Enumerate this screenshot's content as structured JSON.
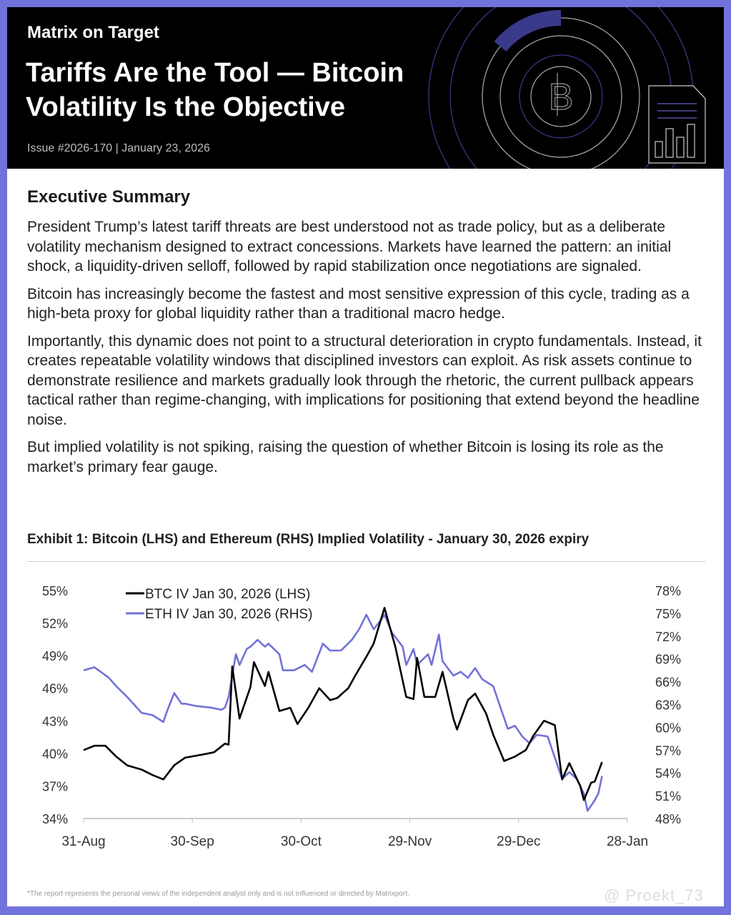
{
  "header": {
    "brand": "Matrix on Target",
    "title_line1": "Tariffs Are the Tool — Bitcoin",
    "title_line2": "Volatility Is the Objective",
    "issue": "Issue #2026-170 | January 23, 2026"
  },
  "summary": {
    "heading": "Executive Summary",
    "paragraphs": [
      "President Trump’s latest tariff threats are best understood not as trade policy, but as a deliberate volatility mechanism designed to extract concessions. Markets have learned the pattern: an initial shock, a liquidity-driven selloff, followed by rapid stabilization once negotiations are signaled.",
      "Bitcoin has increasingly become the fastest and most sensitive expression of this cycle, trading as a high-beta proxy for global liquidity rather than a traditional macro hedge.",
      "Importantly, this dynamic does not point to a structural deterioration in crypto fundamentals. Instead, it creates repeatable volatility windows that disciplined investors can exploit. As risk assets continue to demonstrate resilience and markets gradually look through the rhetoric, the current pullback appears tactical rather than regime-changing, with implications for positioning that extend beyond the headline noise.",
      "But implied volatility is not spiking, raising the question of whether Bitcoin is losing its role as the market’s primary fear gauge."
    ]
  },
  "chart_data": {
    "type": "line",
    "title": "Exhibit 1: Bitcoin (LHS) and Ethereum (RHS) Implied Volatility - January 30, 2026 expiry",
    "x_unit": "days since 31-Aug-2025",
    "x_ticks": [
      {
        "day": 0,
        "label": "31-Aug"
      },
      {
        "day": 30,
        "label": "30-Sep"
      },
      {
        "day": 60,
        "label": "30-Oct"
      },
      {
        "day": 90,
        "label": "29-Nov"
      },
      {
        "day": 120,
        "label": "29-Dec"
      },
      {
        "day": 150,
        "label": "28-Jan"
      }
    ],
    "xlim": [
      0,
      150
    ],
    "y_left": {
      "ylim": [
        34,
        55
      ],
      "ticks": [
        "55%",
        "52%",
        "49%",
        "46%",
        "43%",
        "40%",
        "37%",
        "34%"
      ],
      "tick_values": [
        55,
        52,
        49,
        46,
        43,
        40,
        37,
        34
      ]
    },
    "y_right": {
      "ylim": [
        48,
        78
      ],
      "ticks": [
        "78%",
        "75%",
        "72%",
        "69%",
        "66%",
        "63%",
        "60%",
        "57%",
        "54%",
        "51%",
        "48%"
      ],
      "tick_values": [
        78,
        75,
        72,
        69,
        66,
        63,
        60,
        57,
        54,
        51,
        48
      ]
    },
    "legend_position": "top-left",
    "grid": false,
    "series": [
      {
        "name": "BTC IV Jan 30, 2026 (LHS)",
        "axis": "left",
        "color": "#000000",
        "x": [
          0,
          3,
          6,
          9,
          12,
          16,
          19,
          22,
          25,
          28,
          33,
          36,
          39,
          40,
          41,
          43,
          46,
          47,
          50,
          51,
          54,
          57,
          59,
          62,
          65,
          68,
          70,
          73,
          75,
          78,
          80,
          83,
          86,
          89,
          91,
          92,
          94,
          97,
          99,
          102,
          103,
          106,
          108,
          111,
          113,
          116,
          119,
          122,
          124,
          127,
          130,
          132,
          134,
          137,
          138,
          140,
          141,
          143
        ],
        "y": [
          40.3,
          40.7,
          40.7,
          39.7,
          38.9,
          38.5,
          38.0,
          37.6,
          38.9,
          39.6,
          39.9,
          40.1,
          40.9,
          40.8,
          48.0,
          43.2,
          46.1,
          48.4,
          46.2,
          47.5,
          43.9,
          44.2,
          42.7,
          44.2,
          46.0,
          44.9,
          45.1,
          46.0,
          47.2,
          48.9,
          50.1,
          53.4,
          49.8,
          45.2,
          45.0,
          48.8,
          45.2,
          45.2,
          47.5,
          43.2,
          42.2,
          44.9,
          45.5,
          43.7,
          41.7,
          39.3,
          39.7,
          40.3,
          41.6,
          43.0,
          42.6,
          37.6,
          39.1,
          37.0,
          35.7,
          37.3,
          37.4,
          39.2
        ]
      },
      {
        "name": "ETH IV Jan 30, 2026 (RHS)",
        "axis": "right",
        "color": "#7272d8",
        "x": [
          0,
          3,
          7,
          9,
          12,
          16,
          19,
          22,
          23,
          25,
          27,
          28,
          31,
          35,
          38,
          39,
          40,
          42,
          43,
          45,
          46,
          48,
          50,
          51,
          54,
          55,
          58,
          61,
          63,
          66,
          68,
          71,
          74,
          76,
          78,
          80,
          82,
          83,
          85,
          88,
          89,
          91,
          92,
          95,
          96,
          98,
          99,
          102,
          104,
          106,
          108,
          110,
          113,
          115,
          117,
          119,
          121,
          123,
          125,
          128,
          130,
          132,
          134,
          136,
          138,
          139,
          141,
          142,
          143
        ],
        "y": [
          67.5,
          67.9,
          66.5,
          65.4,
          64.0,
          61.9,
          61.6,
          60.7,
          62.1,
          64.5,
          63.1,
          63.1,
          62.8,
          62.6,
          62.3,
          62.6,
          64.0,
          69.6,
          68.2,
          70.3,
          70.6,
          71.5,
          70.6,
          71.0,
          69.6,
          67.5,
          67.5,
          68.2,
          67.3,
          71.0,
          70.1,
          70.1,
          71.5,
          72.9,
          74.8,
          72.9,
          74.1,
          74.8,
          72.5,
          70.6,
          68.2,
          70.3,
          68.2,
          69.6,
          68.2,
          72.2,
          68.7,
          66.8,
          67.3,
          66.5,
          67.8,
          66.3,
          65.4,
          62.6,
          59.8,
          60.2,
          58.8,
          57.9,
          59.0,
          58.8,
          56.0,
          53.2,
          54.1,
          53.2,
          51.3,
          49.0,
          50.4,
          51.3,
          53.6
        ]
      }
    ]
  },
  "footer": {
    "disclaimer": "*The report represents the personal views of the independent analyst only and is not influenced or directed by Matrixport.",
    "watermark": "@ Proekt_73"
  },
  "colors": {
    "frame": "#7272dc",
    "eth": "#7272d8",
    "btc": "#000000"
  }
}
